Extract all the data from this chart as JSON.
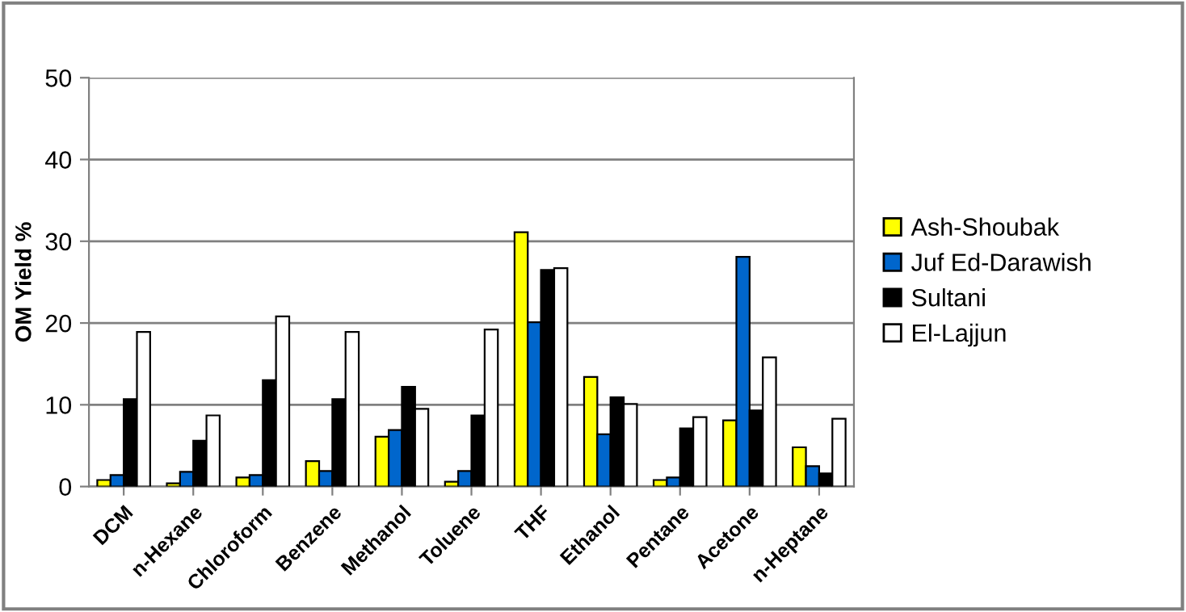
{
  "chart_data": {
    "type": "bar",
    "ylabel": "OM Yield %",
    "categories": [
      "DCM",
      "n-Hexane",
      "Chloroform",
      "Benzene",
      "Methanol",
      "Toluene",
      "THF",
      "Ethanol",
      "Pentane",
      "Acetone",
      "n-Heptane"
    ],
    "series": [
      {
        "name": "Ash-Shoubak",
        "color": "#ffff00",
        "values": [
          0.8,
          0.4,
          1.1,
          3.1,
          6.1,
          0.6,
          31.1,
          13.4,
          0.8,
          8.1,
          4.8
        ]
      },
      {
        "name": "Juf Ed-Darawish",
        "color": "#0066cc",
        "values": [
          1.4,
          1.8,
          1.4,
          1.9,
          6.9,
          1.9,
          20.1,
          6.4,
          1.1,
          28.1,
          2.5
        ]
      },
      {
        "name": "Sultani",
        "color": "#000000",
        "values": [
          10.7,
          5.6,
          13.0,
          10.7,
          12.2,
          8.7,
          26.5,
          10.9,
          7.1,
          9.3,
          1.6
        ]
      },
      {
        "name": "El-Lajjun",
        "color": "#ffffff",
        "values": [
          18.9,
          8.7,
          20.8,
          18.9,
          9.5,
          19.2,
          26.7,
          10.1,
          8.5,
          15.8,
          8.3
        ]
      }
    ],
    "ylim": [
      0,
      50
    ],
    "yticks": [
      0,
      10,
      20,
      30,
      40,
      50
    ],
    "grid": "y",
    "legend": "right"
  }
}
